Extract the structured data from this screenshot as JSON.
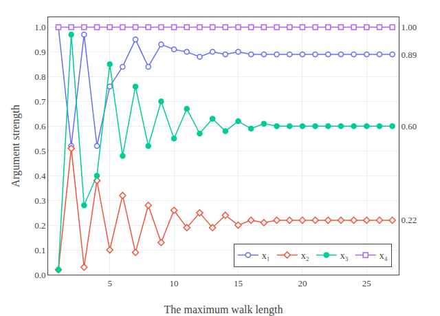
{
  "chart_data": {
    "type": "line",
    "xlabel": "The maximum walk length",
    "ylabel": "Argument strength",
    "x": [
      1,
      2,
      3,
      4,
      5,
      6,
      7,
      8,
      9,
      10,
      11,
      12,
      13,
      14,
      15,
      16,
      17,
      18,
      19,
      20,
      21,
      22,
      23,
      24,
      25,
      26,
      27
    ],
    "series": [
      {
        "name": "x₁",
        "marker": "circle-open",
        "values": [
          1.0,
          0.52,
          0.97,
          0.52,
          0.76,
          0.84,
          0.95,
          0.84,
          0.93,
          0.91,
          0.9,
          0.88,
          0.9,
          0.89,
          0.9,
          0.89,
          0.89,
          0.89,
          0.89,
          0.89,
          0.89,
          0.89,
          0.89,
          0.89,
          0.89,
          0.89,
          0.89
        ]
      },
      {
        "name": "x₂",
        "marker": "diamond-open",
        "values": [
          0.02,
          0.51,
          0.03,
          0.38,
          0.1,
          0.32,
          0.09,
          0.28,
          0.13,
          0.26,
          0.19,
          0.25,
          0.19,
          0.24,
          0.2,
          0.22,
          0.21,
          0.22,
          0.22,
          0.22,
          0.22,
          0.22,
          0.22,
          0.22,
          0.22,
          0.22,
          0.22
        ]
      },
      {
        "name": "x₃",
        "marker": "circle",
        "values": [
          0.02,
          0.97,
          0.28,
          0.4,
          0.85,
          0.48,
          0.76,
          0.52,
          0.7,
          0.55,
          0.67,
          0.57,
          0.63,
          0.58,
          0.62,
          0.59,
          0.61,
          0.6,
          0.6,
          0.6,
          0.6,
          0.6,
          0.6,
          0.6,
          0.6,
          0.6,
          0.6
        ]
      },
      {
        "name": "x₄",
        "marker": "square-open",
        "values": [
          1.0,
          1.0,
          1.0,
          1.0,
          1.0,
          1.0,
          1.0,
          1.0,
          1.0,
          1.0,
          1.0,
          1.0,
          1.0,
          1.0,
          1.0,
          1.0,
          1.0,
          1.0,
          1.0,
          1.0,
          1.0,
          1.0,
          1.0,
          1.0,
          1.0,
          1.0,
          1.0
        ]
      }
    ],
    "xlim": [
      0.2,
      27.5
    ],
    "xticks": [
      5,
      10,
      15,
      20,
      25
    ],
    "ylim": [
      0.0,
      1.04
    ],
    "yticks": [
      {
        "value": 0,
        "label": "0.0"
      },
      0.1,
      0.2,
      0.3,
      0.4,
      0.5,
      0.6,
      0.7,
      0.8,
      0.9,
      {
        "value": 1,
        "label": "1.0"
      }
    ],
    "y2lim": [
      0.0,
      1.04
    ],
    "y2ticks": [
      {
        "value": 1,
        "label": "1.00"
      },
      0.89,
      {
        "value": 0.6,
        "label": "0.60"
      },
      0.22
    ],
    "grid": true,
    "legend": "lower right"
  }
}
